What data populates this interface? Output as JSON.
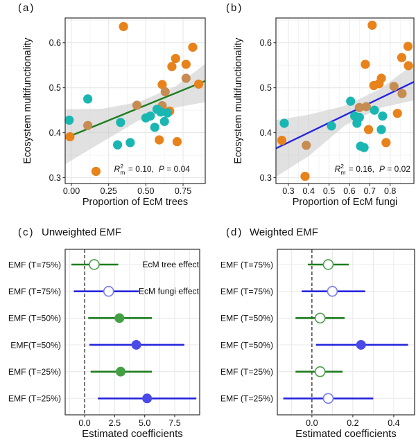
{
  "figure": {
    "panels": [
      {
        "tag": "(a)"
      },
      {
        "tag": "(b)"
      },
      {
        "tag": "(c)",
        "title": "Unweighted EMF"
      },
      {
        "tag": "(d)",
        "title": "Weighted EMF"
      }
    ]
  },
  "colors": {
    "orange": "#E8821B",
    "tan": "#C68C51",
    "teal": "#1AB6B2",
    "green_line": "#1E7D1E",
    "blue_line": "#2525DE",
    "green_fill": "#44A044",
    "blue_fill": "#4A4AE8",
    "green_open": "#55A055",
    "blue_open": "#8080EC",
    "band": "#C9C9C9",
    "grid_major": "#E8E8E8",
    "grid_minor": "#F3F3F3",
    "border": "#2E2E2E"
  },
  "chart_data": [
    {
      "id": "a",
      "type": "scatter",
      "xlabel": "Proportion of EcM trees",
      "ylabel": "Ecosystem multifunctionality",
      "xlim": [
        -0.042,
        0.899
      ],
      "ylim": [
        0.287,
        0.655
      ],
      "xticks": [
        0.0,
        0.25,
        0.5,
        0.75
      ],
      "xtick_labels": [
        "0.00",
        "0.25",
        "0.50",
        "0.75"
      ],
      "yticks": [
        0.3,
        0.4,
        0.5,
        0.6
      ],
      "ytick_labels": [
        "0.3",
        "0.4",
        "0.5",
        "0.6"
      ],
      "stats": {
        "r2": "0.10",
        "p": "0.04"
      },
      "ann_frac": 0.62,
      "fit": {
        "color": "#1E7D1E",
        "x": [
          -0.042,
          0.899
        ],
        "y": [
          0.388,
          0.515
        ]
      },
      "band": [
        [
          -0.042,
          0.33,
          0.452
        ],
        [
          0.2,
          0.378,
          0.453
        ],
        [
          0.45,
          0.427,
          0.468
        ],
        [
          0.7,
          0.456,
          0.503
        ],
        [
          0.899,
          0.468,
          0.553
        ]
      ],
      "series": [
        {
          "name": "orange",
          "color": "#E8821B",
          "points": [
            [
              0.35,
              0.636
            ],
            [
              0.815,
              0.59
            ],
            [
              0.7,
              0.565
            ],
            [
              0.675,
              0.547
            ],
            [
              0.77,
              0.552
            ],
            [
              0.61,
              0.507
            ],
            [
              0.855,
              0.508
            ],
            [
              0.66,
              0.448
            ],
            [
              -0.01,
              0.391
            ],
            [
              0.59,
              0.384
            ],
            [
              0.71,
              0.38
            ],
            [
              0.165,
              0.314
            ]
          ]
        },
        {
          "name": "tan",
          "color": "#C68C51",
          "points": [
            [
              0.77,
              0.521
            ],
            [
              0.63,
              0.491
            ],
            [
              0.44,
              0.461
            ],
            [
              0.61,
              0.46
            ],
            [
              0.11,
              0.416
            ]
          ]
        },
        {
          "name": "teal",
          "color": "#1AB6B2",
          "points": [
            [
              0.11,
              0.475
            ],
            [
              -0.015,
              0.428
            ],
            [
              0.33,
              0.423
            ],
            [
              0.5,
              0.433
            ],
            [
              0.53,
              0.437
            ],
            [
              0.575,
              0.452
            ],
            [
              0.6,
              0.446
            ],
            [
              0.645,
              0.444
            ],
            [
              0.625,
              0.425
            ],
            [
              0.56,
              0.412
            ],
            [
              0.31,
              0.373
            ],
            [
              0.395,
              0.378
            ]
          ]
        }
      ]
    },
    {
      "id": "b",
      "type": "scatter",
      "xlabel": "Proportion of EcM fungi",
      "ylabel": "Ecosystem multifunctionality",
      "xlim": [
        0.239,
        0.917
      ],
      "ylim": [
        0.287,
        0.655
      ],
      "xticks": [
        0.3,
        0.4,
        0.5,
        0.6,
        0.7,
        0.8
      ],
      "xtick_labels": [
        "0.3",
        "0.4",
        "0.5",
        "0.6",
        "0.7",
        "0.8"
      ],
      "yticks": [
        0.3,
        0.4,
        0.5,
        0.6
      ],
      "ytick_labels": [
        "0.3",
        "0.4",
        "0.5",
        "0.6"
      ],
      "stats": {
        "r2": "0.16",
        "p": "0.02"
      },
      "ann_frac": 0.7,
      "fit": {
        "color": "#2525DE",
        "x": [
          0.239,
          0.917
        ],
        "y": [
          0.365,
          0.513
        ]
      },
      "band": [
        [
          0.239,
          0.302,
          0.428
        ],
        [
          0.4,
          0.348,
          0.44
        ],
        [
          0.58,
          0.417,
          0.46
        ],
        [
          0.75,
          0.455,
          0.497
        ],
        [
          0.917,
          0.472,
          0.553
        ]
      ],
      "series": [
        {
          "name": "orange",
          "color": "#E8821B",
          "points": [
            [
              0.712,
              0.639
            ],
            [
              0.888,
              0.592
            ],
            [
              0.857,
              0.567
            ],
            [
              0.89,
              0.549
            ],
            [
              0.678,
              0.552
            ],
            [
              0.757,
              0.521
            ],
            [
              0.72,
              0.505
            ],
            [
              0.746,
              0.509
            ],
            [
              0.836,
              0.443
            ],
            [
              0.694,
              0.407
            ],
            [
              0.78,
              0.378
            ],
            [
              0.268,
              0.383
            ],
            [
              0.382,
              0.303
            ]
          ]
        },
        {
          "name": "tan",
          "color": "#C68C51",
          "points": [
            [
              0.819,
              0.503
            ],
            [
              0.859,
              0.487
            ],
            [
              0.649,
              0.456
            ],
            [
              0.683,
              0.458
            ],
            [
              0.388,
              0.372
            ]
          ]
        },
        {
          "name": "teal",
          "color": "#1AB6B2",
          "points": [
            [
              0.606,
              0.47
            ],
            [
              0.28,
              0.421
            ],
            [
              0.512,
              0.415
            ],
            [
              0.626,
              0.437
            ],
            [
              0.649,
              0.434
            ],
            [
              0.637,
              0.421
            ],
            [
              0.723,
              0.45
            ],
            [
              0.763,
              0.437
            ],
            [
              0.757,
              0.407
            ],
            [
              0.672,
              0.367
            ],
            [
              0.655,
              0.37
            ]
          ]
        }
      ]
    },
    {
      "id": "c",
      "type": "forest",
      "title": "Unweighted EMF",
      "xlabel": "Estimated coefficients",
      "xlim": [
        -1.62,
        9.58
      ],
      "xticks": [
        0,
        2.5,
        5,
        7.5
      ],
      "xtick_labels": [
        "0.0",
        "2.5",
        "5.0",
        "7.5"
      ],
      "grid_step": 1.25,
      "zero_line": 0,
      "rows": [
        {
          "label": "EMF (T=75%)",
          "color": "green",
          "estimate": 0.8,
          "ci": [
            -1.1,
            2.8
          ],
          "filled": false,
          "note": "EcM tree effect"
        },
        {
          "label": "EMF (T=75%)",
          "color": "blue",
          "estimate": 2.0,
          "ci": [
            -0.9,
            4.5
          ],
          "filled": false,
          "note": "EcM fungi effect"
        },
        {
          "label": "EMF (T=50%)",
          "color": "green",
          "estimate": 2.9,
          "ci": [
            0.3,
            5.6
          ],
          "filled": true
        },
        {
          "label": "EMF(T=50%)",
          "color": "blue",
          "estimate": 4.3,
          "ci": [
            0.4,
            8.3
          ],
          "filled": true
        },
        {
          "label": "EMF (T=25%)",
          "color": "green",
          "estimate": 3.0,
          "ci": [
            0.5,
            5.6
          ],
          "filled": true
        },
        {
          "label": "EMF (T=25%)",
          "color": "blue",
          "estimate": 5.2,
          "ci": [
            1.1,
            9.3
          ],
          "filled": true
        }
      ]
    },
    {
      "id": "d",
      "type": "forest",
      "title": "Weighted EMF",
      "xlabel": "Estimated coefficients",
      "xlim": [
        -0.169,
        0.502
      ],
      "xticks": [
        0,
        0.2,
        0.4
      ],
      "xtick_labels": [
        "0.0",
        "0.2",
        "0.4"
      ],
      "grid_step": 0.1,
      "zero_line": 0,
      "rows": [
        {
          "label": "EMF (T=75%)",
          "color": "green",
          "estimate": 0.08,
          "ci": [
            -0.02,
            0.18
          ],
          "filled": false
        },
        {
          "label": "EMF (T=75%)",
          "color": "blue",
          "estimate": 0.1,
          "ci": [
            -0.05,
            0.26
          ],
          "filled": false
        },
        {
          "label": "EMF (T=50%)",
          "color": "green",
          "estimate": 0.04,
          "ci": [
            -0.08,
            0.16
          ],
          "filled": false
        },
        {
          "label": "EMF (T=50%)",
          "color": "blue",
          "estimate": 0.24,
          "ci": [
            0.02,
            0.47
          ],
          "filled": true
        },
        {
          "label": "EMF (T=25%)",
          "color": "green",
          "estimate": 0.04,
          "ci": [
            -0.08,
            0.15
          ],
          "filled": false
        },
        {
          "label": "EMF (T=25%)",
          "color": "blue",
          "estimate": 0.08,
          "ci": [
            -0.14,
            0.3
          ],
          "filled": false
        }
      ]
    }
  ]
}
